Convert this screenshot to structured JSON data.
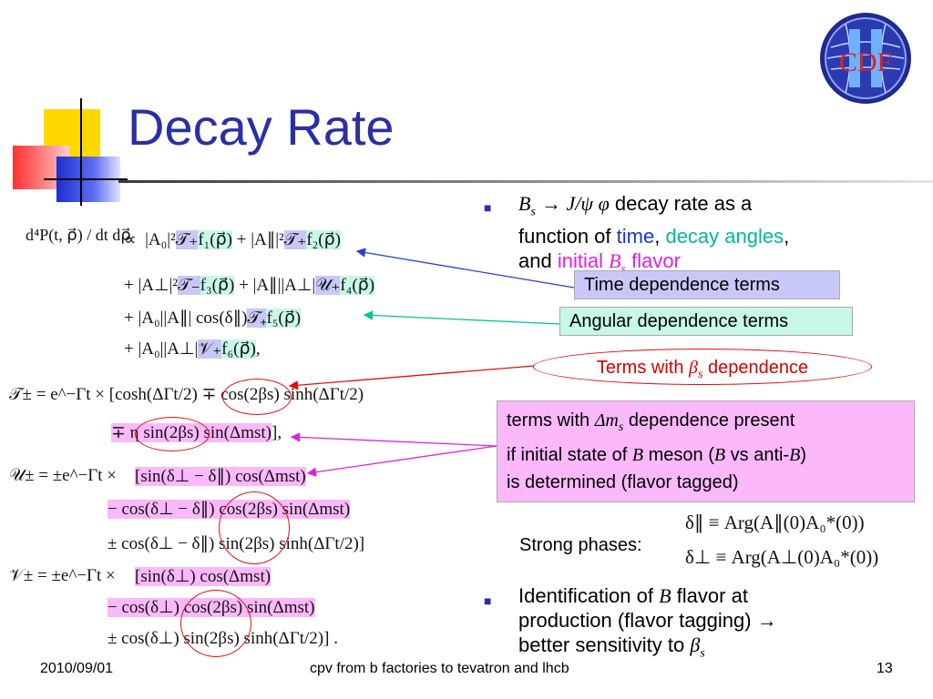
{
  "title": "Decay Rate",
  "logo": {
    "text": "CDF",
    "numeral": "II"
  },
  "bullet1": {
    "line1_pre": "B",
    "line1_sub": "s",
    "line1_arrow": "→ J/ψ φ",
    "line1_post": " decay rate as a",
    "line2_pre": "function of ",
    "time": "time",
    "comma": ",",
    "angles": "decay angles",
    "line3_pre": "and ",
    "initial": "initial",
    "initial_b": "B",
    "initial_sub": "s",
    "flavor": "flavor"
  },
  "labels": {
    "time_dependence": "Time dependence terms",
    "angular_dependence": "Angular dependence terms",
    "beta_pre": "Terms with ",
    "beta_sym": "β",
    "beta_sub": "s",
    "beta_post": " dependence",
    "dm_line1_pre": "terms with ",
    "dm_sym": "Δm",
    "dm_sub": "s",
    "dm_line1_post": " dependence present",
    "dm_line2_pre": "if initial state of ",
    "dm_b1": "B",
    "dm_line2_mid": " meson (",
    "dm_b2": "B",
    "dm_line2_vs": " vs anti-",
    "dm_b3": "B",
    "dm_line2_end": ")",
    "dm_line3": "is determined (flavor tagged)",
    "strong_phases": "Strong phases:"
  },
  "bullet2": {
    "line1_pre": "Identification of ",
    "line1_b": "B",
    "line1_post": " flavor at",
    "line2": "production (flavor tagging) →",
    "line3_pre": "better sensitivity to ",
    "beta": "β",
    "beta_sub": "s"
  },
  "formulas": {
    "lhs": "d⁴P(t, ρ⃗) / dt dρ⃗",
    "prop": "∝",
    "r1a": "|A₀|²",
    "r1b": "𝒯₊",
    "r1c": "f₁(ρ⃗)",
    "r1d": " + |A∥|²",
    "r1e": "𝒯₊",
    "r1f": "f₂(ρ⃗)",
    "r2a": "+ |A⊥|²",
    "r2b": "𝒯₋",
    "r2c": "f₃(ρ⃗)",
    "r2d": " + |A∥||A⊥|",
    "r2e": "𝒰₊",
    "r2f": "f₄(ρ⃗)",
    "r3a": "+ |A₀||A∥| cos(δ∥)",
    "r3b": "𝒯₊",
    "r3c": "f₅(ρ⃗)",
    "r4a": "+ |A₀||A⊥|",
    "r4b": "𝒱₊",
    "r4c": "f₆(ρ⃗)",
    "r4d": ",",
    "t_lhs": "𝒯± = e^−Γt  ×  [cosh(ΔΓt/2) ∓ cos(2βs) sinh(ΔΓt/2)",
    "t_line2": "∓ η sin(2βs) sin(Δmst)",
    "t_line2_end": "],",
    "u_lhs": "𝒰± = ±e^−Γt  ×",
    "u_line1": "[sin(δ⊥ − δ∥) cos(Δmst)",
    "u_line2": "− cos(δ⊥ − δ∥) cos(2βs) sin(Δmst)",
    "u_line3": "± cos(δ⊥ − δ∥) sin(2βs) sinh(ΔΓt/2)]",
    "v_lhs": "𝒱± = ±e^−Γt  ×",
    "v_line1": "[sin(δ⊥) cos(Δmst)",
    "v_line2": "− cos(δ⊥) cos(2βs) sin(Δmst)",
    "v_line3": "± cos(δ⊥) sin(2βs) sinh(ΔΓt/2)] .",
    "delta_par": "δ∥ ≡ Arg(A∥(0)A₀*(0))",
    "delta_perp": "δ⊥ ≡ Arg(A⊥(0)A₀*(0))"
  },
  "footer": {
    "date": "2010/09/01",
    "center": "cpv from b factories to tevatron and lhcb",
    "page": "13"
  },
  "colors": {
    "title": "#2b2fa5",
    "time_box": "#c7c8f7",
    "angular_box": "#c7f7e8",
    "dm_box": "#fbb8fb",
    "ellipse": "#e01010"
  }
}
